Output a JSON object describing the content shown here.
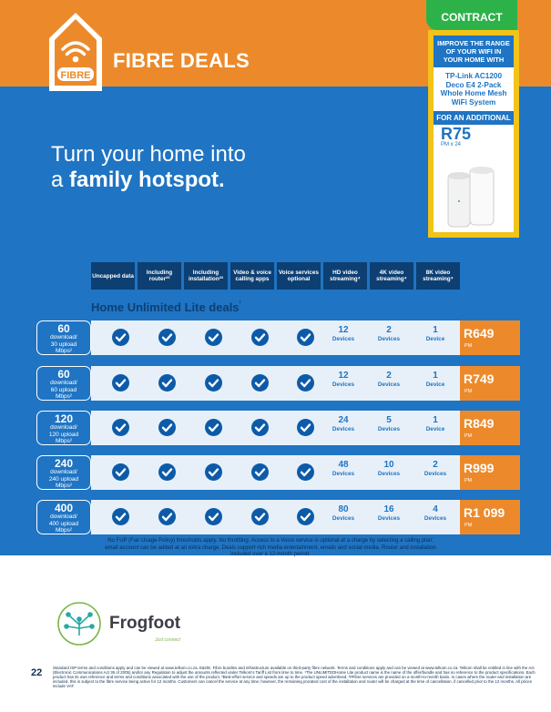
{
  "header": {
    "badge_text": "FIBRE",
    "title": "FIBRE DEALS",
    "contract_tag": "CONTRACT"
  },
  "headline": {
    "line1": "Turn your home into",
    "line2_prefix": "a ",
    "line2_bold": "family hotspot."
  },
  "promo": {
    "intro": "IMPROVE THE RANGE OF YOUR WIFI IN YOUR HOME WITH",
    "product": "TP-Link AC1200 Deco E4 2-Pack Whole Home Mesh WiFi System",
    "for_label": "FOR AN ADDITIONAL",
    "price": "R75",
    "price_term": "PM x 24"
  },
  "columns": [
    "Uncapped data",
    "Including router²³",
    "Including installation²³",
    "Video & voice calling apps",
    "Voice services optional",
    "HD video streaming⁴",
    "4K video streaming⁴",
    "8K video streaming⁴"
  ],
  "section_title": "Home Unlimited Lite deals",
  "section_title_sup": "¹",
  "devices_label": "Devices",
  "device_label_single": "Device",
  "pm_label": "PM",
  "rows": [
    {
      "down": "60",
      "line2": "download/",
      "line3": "30 upload",
      "line4": "Mbps²",
      "hd": "12",
      "k4": "2",
      "k8": "1",
      "k8_label": "Device",
      "price": "R649"
    },
    {
      "down": "60",
      "line2": "download/",
      "line3": "60 upload",
      "line4": "Mbps²",
      "hd": "12",
      "k4": "2",
      "k8": "1",
      "k8_label": "Device",
      "price": "R749"
    },
    {
      "down": "120",
      "line2": "download/",
      "line3": "120 upload",
      "line4": "Mbps²",
      "hd": "24",
      "k4": "5",
      "k8": "1",
      "k8_label": "Device",
      "price": "R849"
    },
    {
      "down": "240",
      "line2": "download/",
      "line3": "240 upload",
      "line4": "Mbps²",
      "hd": "48",
      "k4": "10",
      "k8": "2",
      "k8_label": "Devices",
      "price": "R999"
    },
    {
      "down": "400",
      "line2": "download/",
      "line3": "400 upload",
      "line4": "Mbps²",
      "hd": "80",
      "k4": "16",
      "k8": "4",
      "k8_label": "Devices",
      "price": "R1 099"
    }
  ],
  "notes": "No FUP (Fair Usage Policy) thresholds apply. No throttling. Access to a Voice service is optional at a charge by selecting a calling plan; email account can be added at an extra charge. Deals support rich media entertainment, emails and social media. Router and installation included over a 12-month period.",
  "brand": {
    "name": "Frogfoot",
    "tagline": "Just connect"
  },
  "page_number": "22",
  "small_print": "Standard ISP terms and conditions apply and can be viewed at www.telkom.co.za. E&OE. Fibre bundles and infrastructure available on third-party fibre network. Terms and conditions apply and can be viewed at www.telkom.co.za. Telkom shall be entitled in line with the Act (Electronic Communications Act 36 of 2005) and/or any Regulation to adjust the amounts reflected under Telkom's Tariff List from time to time. ¹The UNLIMITEDHome Lite product name is the name of the offer/bundle and has no reference to the product specifications. Each product has its own reference and terms and conditions associated with the use of the product. ²Best-effort service and speeds are up to the product speed advertised. ³#Fibre services are provided on a month-to-month basis. In cases where the router and installation are included, this is subject to the fibre service being active for 12 months. Customers can cancel the service at any time; however, the remaining prorated cost of the installation and router will be charged at the time of cancellation, if cancelled prior to the 12 months. All prices include VAT.",
  "colors": {
    "orange": "#ec8a2b",
    "blue": "#1f74c3",
    "navy": "#0d3f73",
    "yellow": "#f2c318",
    "green": "#2db24a"
  }
}
